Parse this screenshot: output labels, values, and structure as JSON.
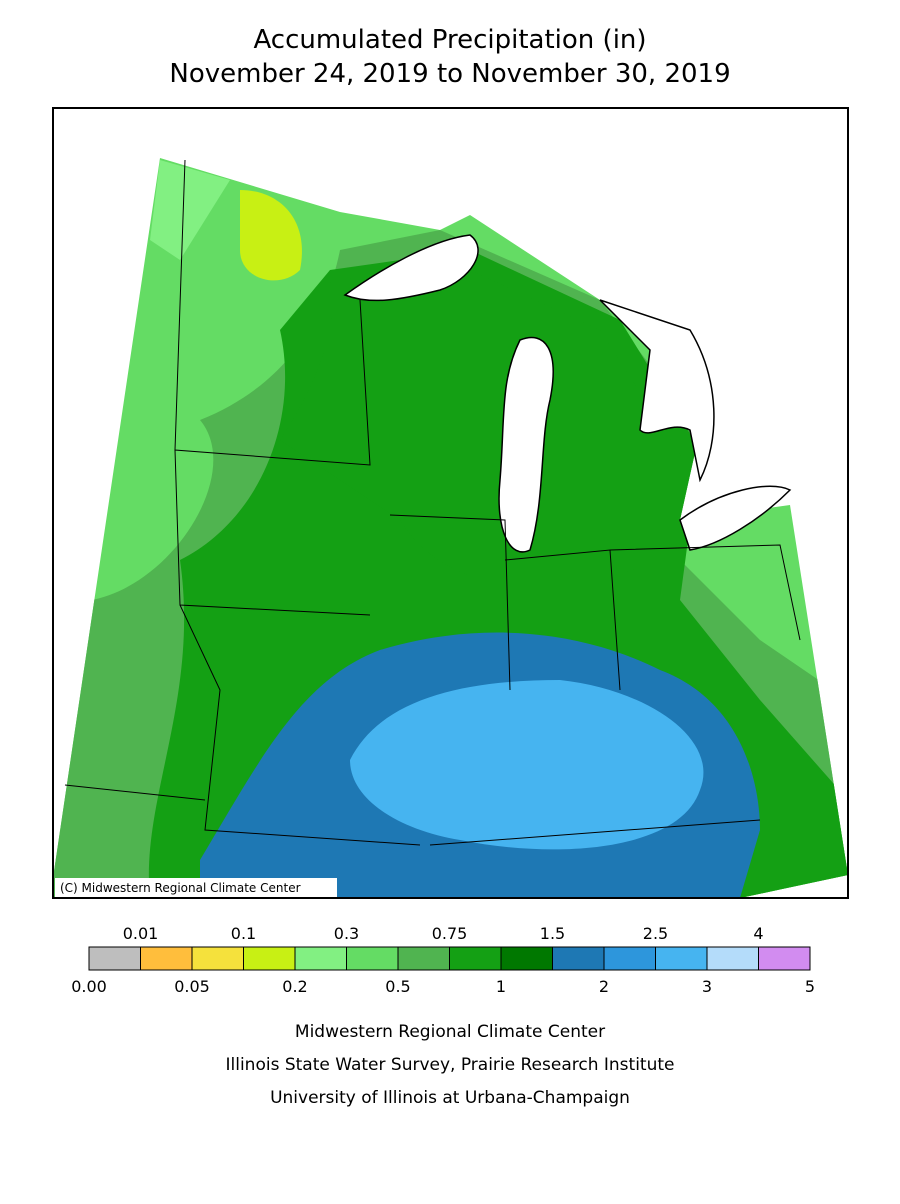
{
  "header": {
    "title": "Accumulated Precipitation (in)",
    "subtitle": "November 24, 2019 to November 30, 2019"
  },
  "map": {
    "credit": "(C) Midwestern Regional Climate Center"
  },
  "legend": {
    "colors": [
      "#bebebe",
      "#ffbe3c",
      "#f5e13c",
      "#c8f014",
      "#82f082",
      "#64dc64",
      "#50b450",
      "#14a014",
      "#007800",
      "#1e78b4",
      "#2d96dc",
      "#46b4f0",
      "#b4dcfa",
      "#d28cf0"
    ],
    "boundaries": [
      {
        "value": 0,
        "label": "0.00"
      },
      0.01,
      0.05,
      0.1,
      0.2,
      0.3,
      0.5,
      0.75,
      1,
      1.5,
      2,
      2.5,
      3,
      4,
      5
    ]
  },
  "footer": [
    "Midwestern Regional Climate Center",
    "Illinois State Water Survey, Prairie Research Institute",
    "University of Illinois at Urbana-Champaign"
  ]
}
